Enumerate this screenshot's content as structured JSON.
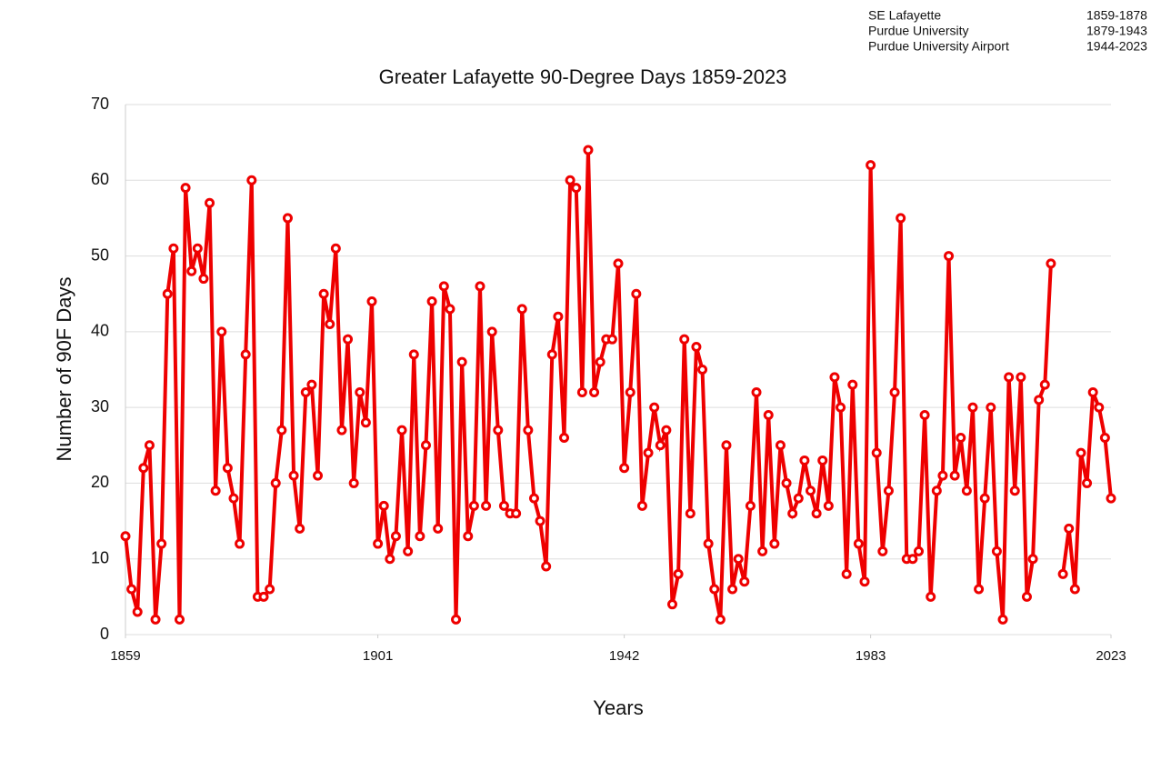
{
  "chart_data": {
    "type": "line",
    "title": "Greater Lafayette 90-Degree Days 1859-2023",
    "xlabel": "Years",
    "ylabel": "Number of 90F Days",
    "stations": [
      {
        "name": "SE Lafayette",
        "years": "1859-1878"
      },
      {
        "name": "Purdue University",
        "years": "1879-1943"
      },
      {
        "name": "Purdue University Airport",
        "years": "1944-2023"
      }
    ],
    "x": [
      1859,
      1860,
      1861,
      1862,
      1863,
      1864,
      1865,
      1866,
      1867,
      1868,
      1869,
      1870,
      1871,
      1872,
      1873,
      1874,
      1875,
      1876,
      1877,
      1878,
      1879,
      1880,
      1881,
      1882,
      1883,
      1884,
      1885,
      1886,
      1887,
      1888,
      1889,
      1890,
      1891,
      1892,
      1893,
      1894,
      1895,
      1896,
      1897,
      1898,
      1899,
      1900,
      1901,
      1902,
      1903,
      1904,
      1905,
      1906,
      1907,
      1908,
      1909,
      1910,
      1911,
      1912,
      1913,
      1914,
      1915,
      1916,
      1917,
      1918,
      1919,
      1920,
      1921,
      1922,
      1923,
      1924,
      1925,
      1926,
      1927,
      1928,
      1929,
      1930,
      1931,
      1932,
      1933,
      1934,
      1935,
      1936,
      1937,
      1938,
      1939,
      1940,
      1941,
      1942,
      1943,
      1944,
      1945,
      1946,
      1947,
      1948,
      1949,
      1950,
      1951,
      1952,
      1953,
      1954,
      1955,
      1956,
      1957,
      1958,
      1959,
      1960,
      1961,
      1962,
      1963,
      1964,
      1965,
      1966,
      1967,
      1968,
      1969,
      1970,
      1971,
      1972,
      1973,
      1974,
      1975,
      1976,
      1977,
      1978,
      1979,
      1980,
      1981,
      1982,
      1983,
      1984,
      1985,
      1986,
      1987,
      1988,
      1989,
      1990,
      1991,
      1992,
      1993,
      1994,
      1995,
      1996,
      1997,
      1998,
      1999,
      2000,
      2001,
      2002,
      2003,
      2004,
      2005,
      2006,
      2007,
      2008,
      2009,
      2010,
      2011,
      2012,
      2013,
      2014,
      2015,
      2016,
      2017,
      2018,
      2019,
      2020,
      2021,
      2022,
      2023
    ],
    "series": [
      {
        "name": "90F Days",
        "color": "#ee0000",
        "values": [
          13,
          6,
          3,
          22,
          25,
          2,
          12,
          45,
          51,
          2,
          59,
          48,
          51,
          47,
          57,
          19,
          40,
          22,
          18,
          12,
          37,
          60,
          5,
          5,
          6,
          20,
          27,
          55,
          21,
          14,
          32,
          33,
          21,
          45,
          41,
          51,
          27,
          39,
          20,
          32,
          28,
          44,
          12,
          17,
          10,
          13,
          27,
          11,
          37,
          13,
          25,
          44,
          14,
          46,
          43,
          2,
          36,
          13,
          17,
          46,
          17,
          40,
          27,
          17,
          16,
          16,
          43,
          27,
          18,
          15,
          9,
          37,
          42,
          26,
          60,
          59,
          32,
          64,
          32,
          36,
          39,
          39,
          49,
          22,
          32,
          45,
          17,
          24,
          30,
          25,
          27,
          4,
          8,
          39,
          16,
          38,
          35,
          12,
          6,
          2,
          25,
          6,
          10,
          7,
          17,
          32,
          11,
          29,
          12,
          25,
          20,
          16,
          18,
          23,
          19,
          16,
          23,
          17,
          34,
          30,
          8,
          33,
          12,
          7,
          62,
          24,
          11,
          19,
          32,
          55,
          10,
          10,
          11,
          29,
          5,
          19,
          21,
          50,
          21,
          26,
          19,
          30,
          6,
          18,
          30,
          11,
          2,
          34,
          19,
          34,
          5,
          10,
          31,
          33,
          49,
          null,
          8,
          14,
          6,
          24,
          20,
          32,
          30,
          26,
          18
        ]
      }
    ],
    "xlim": [
      1859,
      2023
    ],
    "xticks": [
      1859,
      1901,
      1942,
      1983,
      2023
    ],
    "ylim": [
      0,
      70
    ],
    "yticks": [
      0,
      10,
      20,
      30,
      40,
      50,
      60,
      70
    ],
    "grid": true
  }
}
